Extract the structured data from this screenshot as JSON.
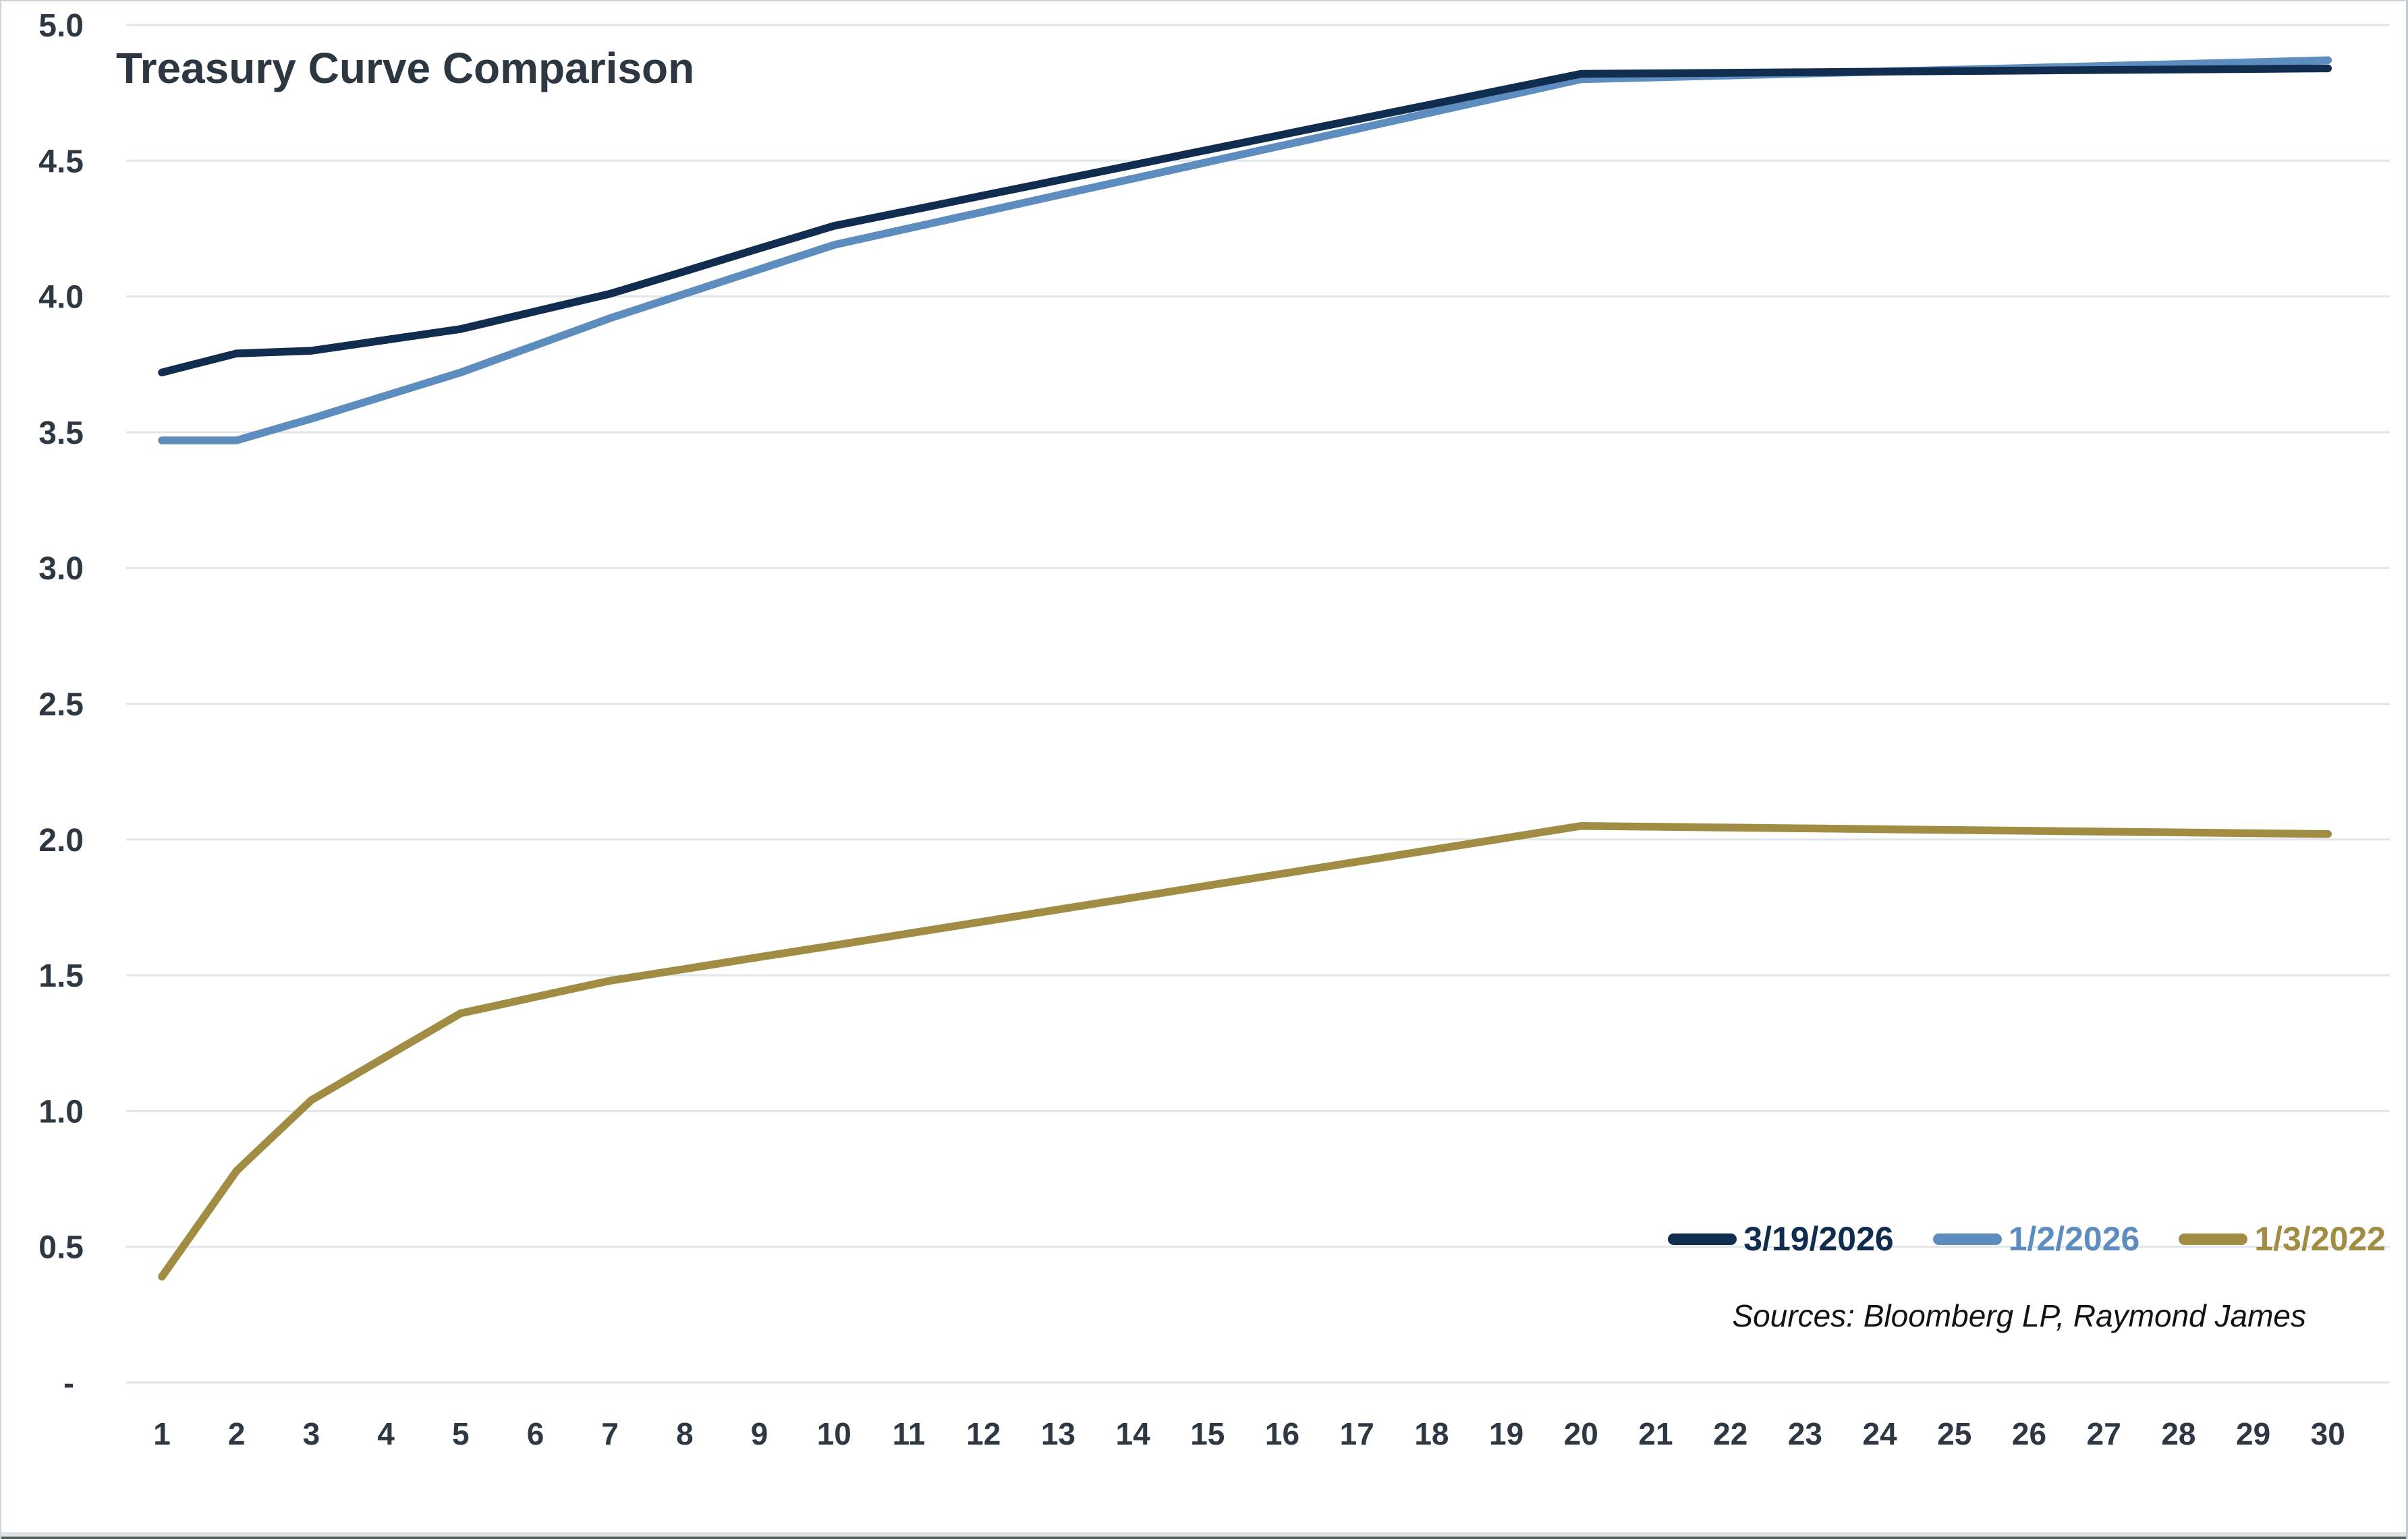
{
  "chart_data": {
    "type": "line",
    "title": "Treasury Curve Comparison",
    "xlabel": "",
    "ylabel": "",
    "x": [
      1,
      2,
      3,
      4,
      5,
      6,
      7,
      8,
      9,
      10,
      11,
      12,
      13,
      14,
      15,
      16,
      17,
      18,
      19,
      20,
      21,
      22,
      23,
      24,
      25,
      26,
      27,
      28,
      29,
      30
    ],
    "x_tick_labels": [
      "1",
      "2",
      "3",
      "4",
      "5",
      "6",
      "7",
      "8",
      "9",
      "10",
      "11",
      "12",
      "13",
      "14",
      "15",
      "16",
      "17",
      "18",
      "19",
      "20",
      "21",
      "22",
      "23",
      "24",
      "25",
      "26",
      "27",
      "28",
      "29",
      "30"
    ],
    "ylim": [
      0,
      5
    ],
    "y_tick_values": [
      0,
      0.5,
      1.0,
      1.5,
      2.0,
      2.5,
      3.0,
      3.5,
      4.0,
      4.5,
      5.0
    ],
    "y_tick_labels": [
      "-",
      "0.5",
      "1.0",
      "1.5",
      "2.0",
      "2.5",
      "3.0",
      "3.5",
      "4.0",
      "4.5",
      "5.0"
    ],
    "grid": "horizontal",
    "legend_position": "bottom-right",
    "series": [
      {
        "name": "3/19/2026",
        "color": "#102c4e",
        "values": [
          3.72,
          3.79,
          3.8,
          3.84,
          3.88,
          3.945,
          4.01,
          4.093,
          4.177,
          4.26,
          4.316,
          4.372,
          4.428,
          4.484,
          4.54,
          4.596,
          4.652,
          4.708,
          4.764,
          4.82,
          4.822,
          4.824,
          4.826,
          4.828,
          4.83,
          4.832,
          4.834,
          4.836,
          4.838,
          4.84
        ]
      },
      {
        "name": "1/2/2026",
        "color": "#5d8cbe",
        "values": [
          3.47,
          3.47,
          3.55,
          3.635,
          3.72,
          3.82,
          3.92,
          4.01,
          4.1,
          4.19,
          4.251,
          4.312,
          4.373,
          4.434,
          4.495,
          4.556,
          4.617,
          4.678,
          4.739,
          4.8,
          4.807,
          4.814,
          4.821,
          4.828,
          4.835,
          4.842,
          4.849,
          4.856,
          4.863,
          4.87
        ]
      },
      {
        "name": "1/3/2022",
        "color": "#a08c42",
        "values": [
          0.39,
          0.78,
          1.04,
          1.2,
          1.36,
          1.42,
          1.48,
          1.523,
          1.567,
          1.61,
          1.654,
          1.698,
          1.742,
          1.786,
          1.83,
          1.874,
          1.918,
          1.962,
          2.006,
          2.05,
          2.047,
          2.044,
          2.041,
          2.038,
          2.035,
          2.032,
          2.029,
          2.026,
          2.023,
          2.02
        ]
      }
    ]
  },
  "footer": {
    "sources": "Sources: Bloomberg LP, Raymond James"
  },
  "colors": {
    "background": "#ffffff",
    "gridline": "#dfe5e9",
    "axis_text": "#2e3842",
    "title_text": "#2d3742",
    "series_navy": "#102c4e",
    "series_blue": "#5d8cbe",
    "series_olive": "#a08c42"
  }
}
